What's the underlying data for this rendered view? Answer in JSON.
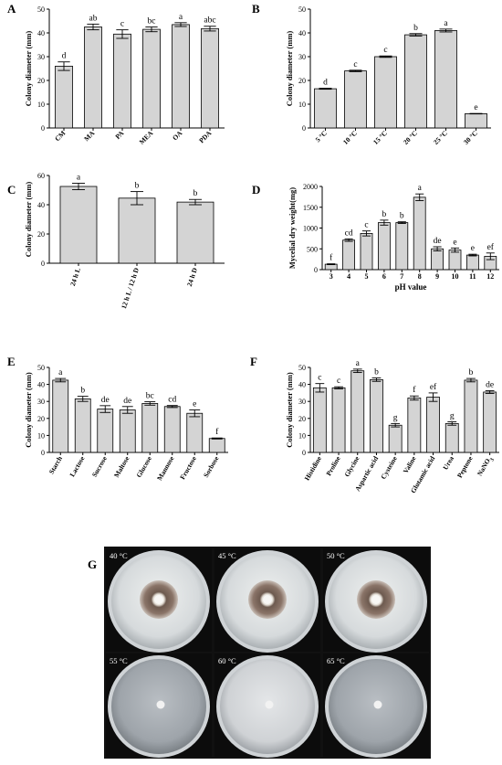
{
  "figure": {
    "photo_panel": {
      "letter": "G",
      "plates": [
        "40 °C",
        "45 °C",
        "50 °C",
        "55 °C",
        "60 °C",
        "65 °C"
      ]
    }
  },
  "chart_data": [
    {
      "panel": "A",
      "type": "bar",
      "ylabel": "Colony diameter (mm)",
      "ylim": [
        0,
        50
      ],
      "yticks": [
        0,
        10,
        20,
        30,
        40,
        50
      ],
      "categories": [
        "CM",
        "MA",
        "PA",
        "MEA",
        "OA",
        "PDA"
      ],
      "values": [
        26,
        42.5,
        39.5,
        41.5,
        43.5,
        41.8
      ],
      "errors": [
        1.8,
        1.2,
        1.8,
        1.0,
        0.8,
        1.0
      ],
      "letters": [
        "d",
        "ab",
        "c",
        "bc",
        "a",
        "abc"
      ]
    },
    {
      "panel": "B",
      "type": "bar",
      "ylabel": "Colony diameter (mm)",
      "ylim": [
        0,
        50
      ],
      "yticks": [
        0,
        10,
        20,
        30,
        40,
        50
      ],
      "categories": [
        "5 °C",
        "10 °C",
        "15 °C",
        "20 °C",
        "25 °C",
        "30 °C"
      ],
      "values": [
        16.5,
        24,
        30,
        39.2,
        41,
        6
      ],
      "errors": [
        0.2,
        0.3,
        0.3,
        0.5,
        0.6,
        0.1
      ],
      "letters": [
        "d",
        "c",
        "c",
        "b",
        "a",
        "e"
      ]
    },
    {
      "panel": "C",
      "type": "bar",
      "ylabel": "Colony diameter (mm)",
      "ylim": [
        0,
        60
      ],
      "yticks": [
        0,
        20,
        40,
        60
      ],
      "categories": [
        "24 h L",
        "12 h L / 12 h D",
        "24 h D"
      ],
      "values": [
        52.5,
        44.5,
        41.8
      ],
      "errors": [
        2.2,
        4.5,
        1.8
      ],
      "letters": [
        "a",
        "b",
        "b"
      ]
    },
    {
      "panel": "D",
      "type": "bar",
      "ylabel": "Mycelial dry weight(mg)",
      "xlabel": "pH value",
      "ylim": [
        0,
        2000
      ],
      "yticks": [
        0,
        500,
        1000,
        1500,
        2000
      ],
      "categories": [
        "3",
        "4",
        "5",
        "6",
        "7",
        "8",
        "9",
        "10",
        "11",
        "12"
      ],
      "values": [
        130,
        710,
        870,
        1130,
        1130,
        1740,
        500,
        470,
        350,
        320
      ],
      "errors": [
        10,
        30,
        60,
        60,
        20,
        80,
        50,
        50,
        20,
        80
      ],
      "letters": [
        "f",
        "cd",
        "c",
        "b",
        "b",
        "a",
        "de",
        "e",
        "e",
        "ef"
      ]
    },
    {
      "panel": "E",
      "type": "bar",
      "ylabel": "Colony diameter (mm)",
      "ylim": [
        0,
        50
      ],
      "yticks": [
        0,
        10,
        20,
        30,
        40,
        50
      ],
      "categories": [
        "Starch",
        "Lactose",
        "Sucrose",
        "Maltose",
        "Glucose",
        "Mannose",
        "Fructose",
        "Sorbose"
      ],
      "values": [
        42.5,
        31.5,
        25.5,
        25,
        28.8,
        27,
        23,
        8.2
      ],
      "errors": [
        1.0,
        1.5,
        2.0,
        2.0,
        1.0,
        0.6,
        2.0,
        0.3
      ],
      "letters": [
        "a",
        "b",
        "de",
        "de",
        "bc",
        "cd",
        "e",
        "f"
      ]
    },
    {
      "panel": "F",
      "type": "bar",
      "ylabel": "Colony diameter (mm)",
      "ylim": [
        0,
        50
      ],
      "yticks": [
        0,
        10,
        20,
        30,
        40,
        50
      ],
      "categories": [
        "Histidine",
        "Proline",
        "Glycine",
        "Aspartic acid",
        "Cysteine",
        "Valine",
        "Glutamic acid",
        "Urea",
        "Peptone",
        "NaNO3"
      ],
      "values": [
        38,
        38,
        48,
        42.8,
        16,
        32,
        32.5,
        17,
        42.5,
        35.5
      ],
      "errors": [
        2.5,
        0.6,
        1.0,
        1.0,
        1.0,
        1.2,
        2.5,
        1.0,
        1.0,
        0.8
      ],
      "letters": [
        "c",
        "c",
        "a",
        "b",
        "g",
        "f",
        "ef",
        "g",
        "b",
        "de"
      ]
    }
  ]
}
